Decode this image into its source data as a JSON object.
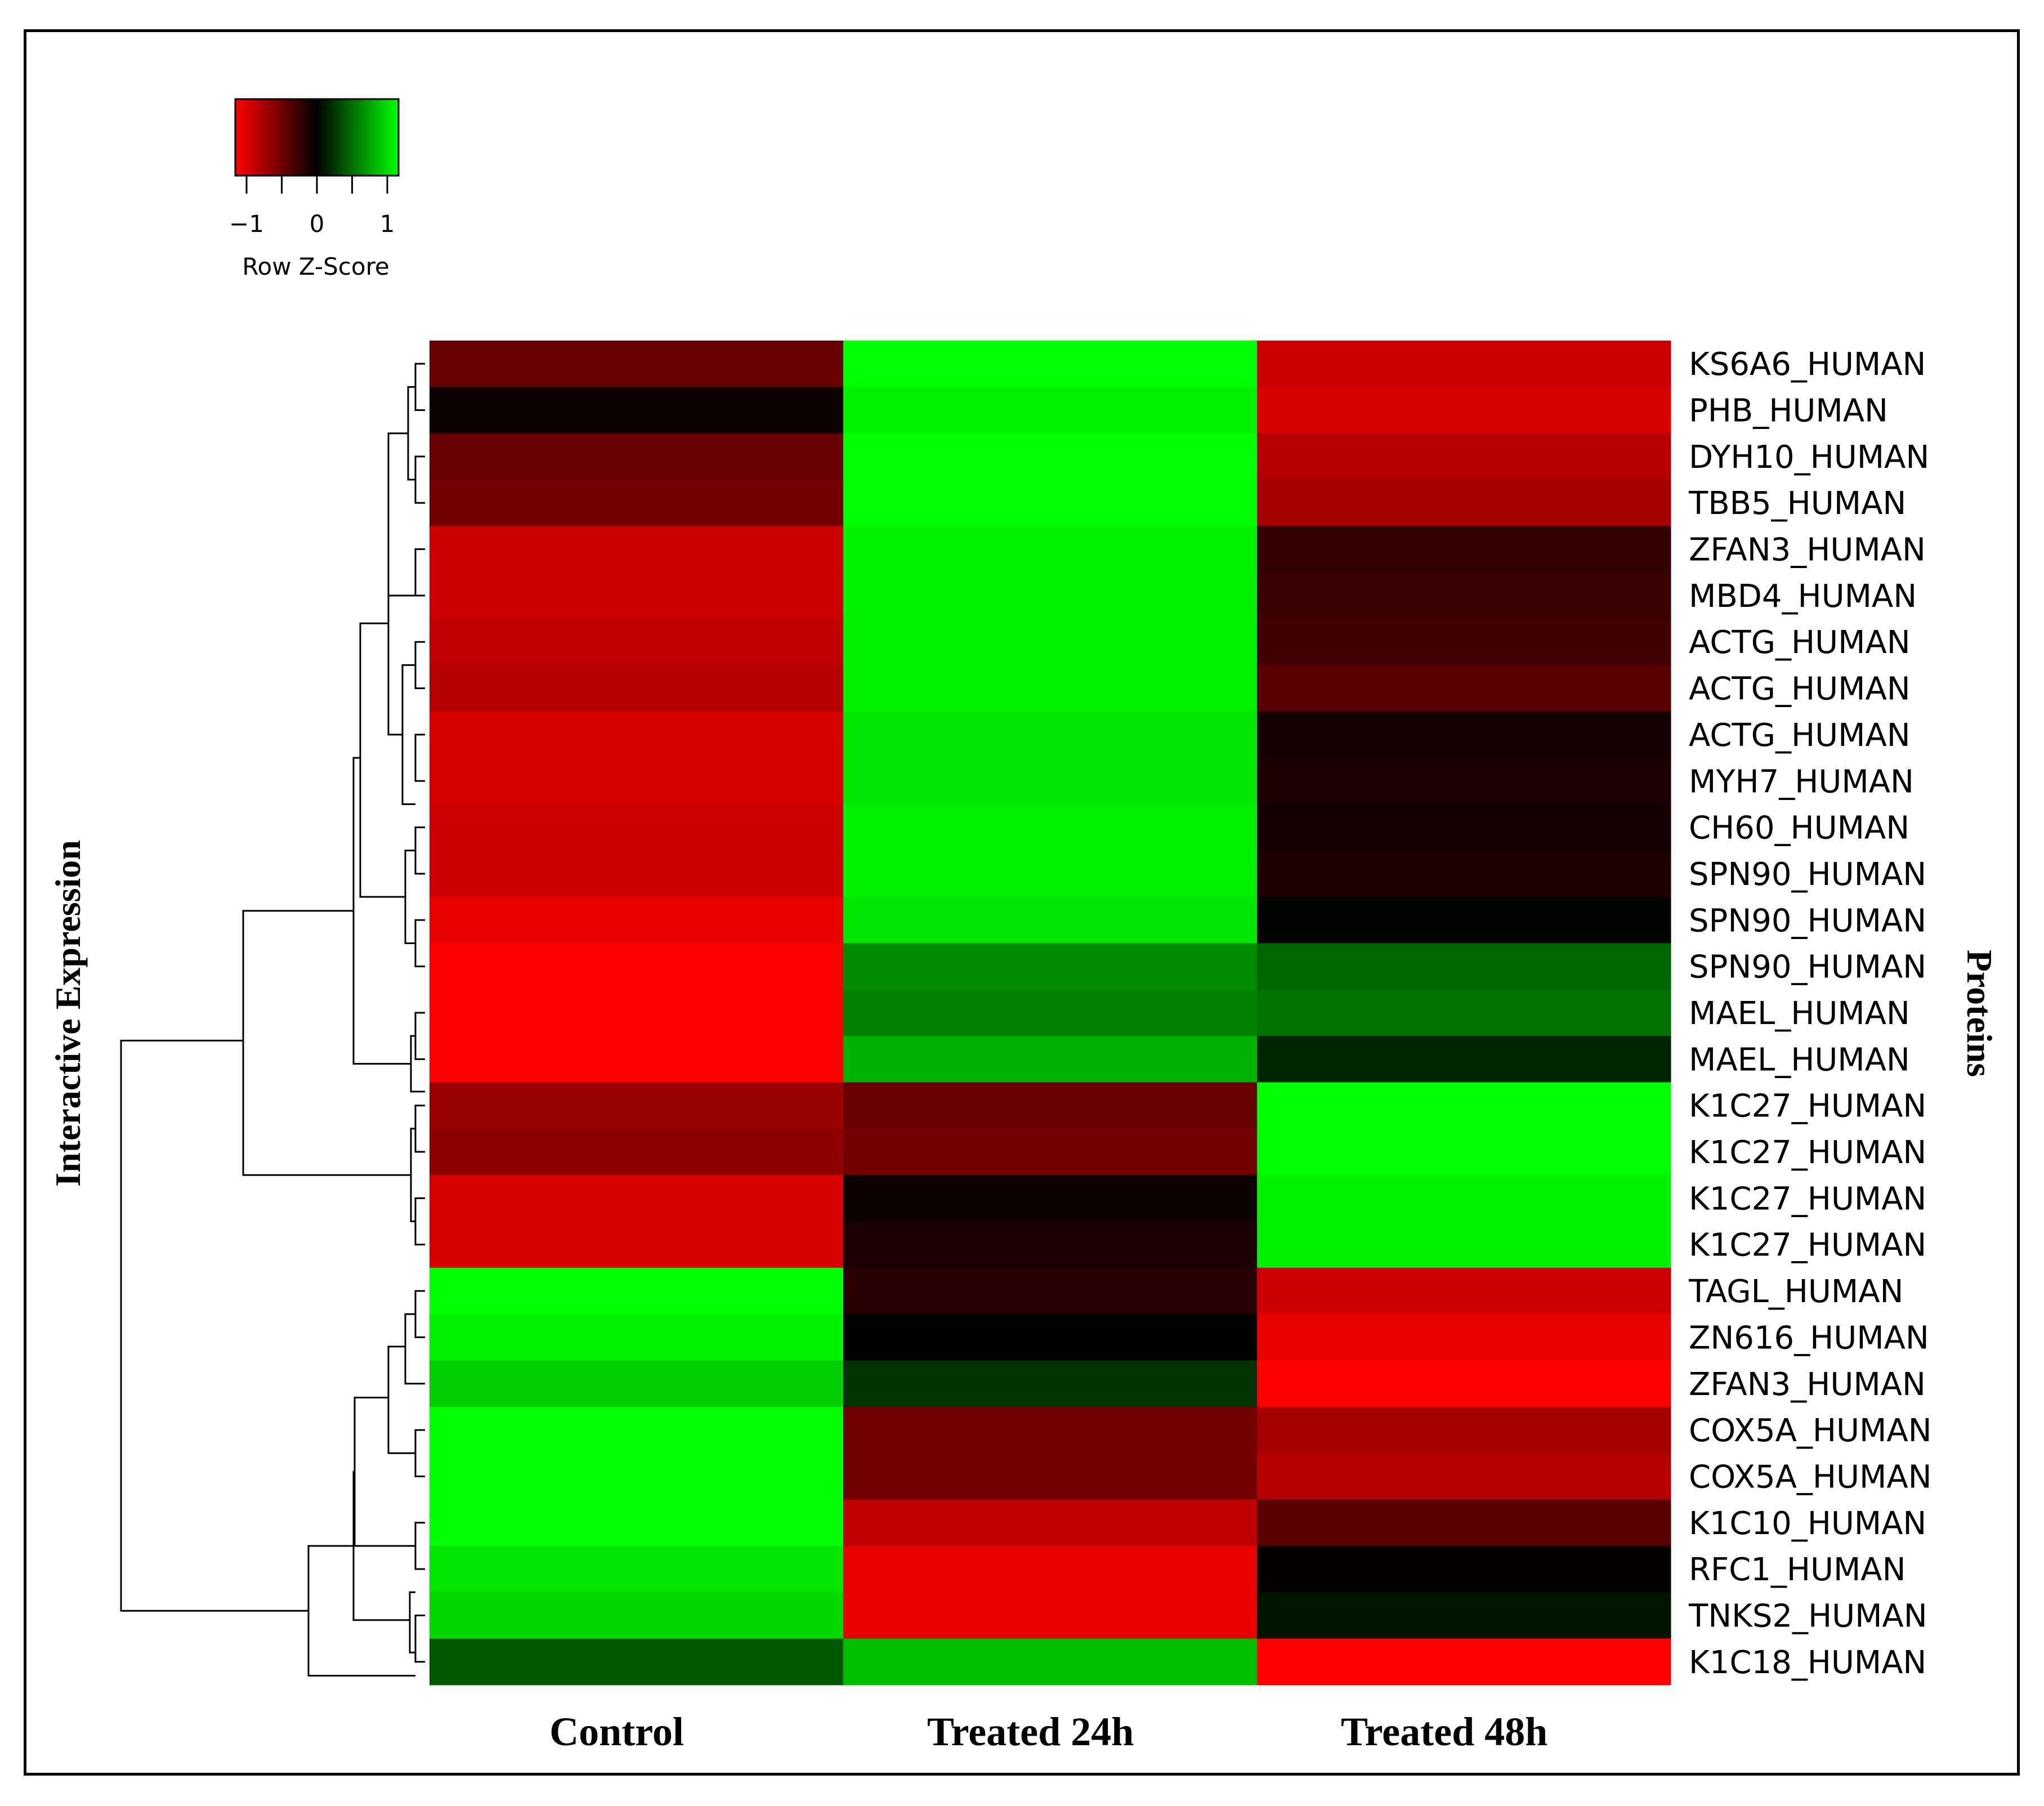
{
  "chart_data": {
    "type": "heatmap",
    "title": "",
    "y_axis_title": "Interactive Expression",
    "right_axis_title": "Proteins",
    "columns": [
      "Control",
      "Treated 24h",
      "Treated 48h"
    ],
    "color_scale": {
      "label": "Row Z-Score",
      "min": -1,
      "mid": 0,
      "max": 1,
      "tick_labels": [
        "−1",
        "0",
        "1"
      ],
      "low_color": "#ff0000",
      "mid_color": "#000000",
      "high_color": "#00ff00"
    },
    "proteins": [
      "KS6A6_HUMAN",
      "PHB_HUMAN",
      "DYH10_HUMAN",
      "TBB5_HUMAN",
      "ZFAN3_HUMAN",
      "MBD4_HUMAN",
      "ACTG_HUMAN",
      "ACTG_HUMAN",
      "ACTG_HUMAN",
      "MYH7_HUMAN",
      "CH60_HUMAN",
      "SPN90_HUMAN",
      "SPN90_HUMAN",
      "SPN90_HUMAN",
      "MAEL_HUMAN",
      "MAEL_HUMAN",
      "K1C27_HUMAN",
      "K1C27_HUMAN",
      "K1C27_HUMAN",
      "K1C27_HUMAN",
      "TAGL_HUMAN",
      "ZN616_HUMAN",
      "ZFAN3_HUMAN",
      "COX5A_HUMAN",
      "COX5A_HUMAN",
      "K1C10_HUMAN",
      "RFC1_HUMAN",
      "TNKS2_HUMAN",
      "K1C18_HUMAN"
    ],
    "z_scores": [
      [
        -0.4,
        1.0,
        -0.8
      ],
      [
        -0.05,
        0.95,
        -0.85
      ],
      [
        -0.4,
        1.0,
        -0.7
      ],
      [
        -0.45,
        1.0,
        -0.65
      ],
      [
        -0.8,
        0.95,
        -0.2
      ],
      [
        -0.8,
        0.95,
        -0.22
      ],
      [
        -0.75,
        0.95,
        -0.25
      ],
      [
        -0.7,
        0.95,
        -0.35
      ],
      [
        -0.85,
        0.9,
        -0.08
      ],
      [
        -0.85,
        0.9,
        -0.1
      ],
      [
        -0.8,
        0.95,
        -0.08
      ],
      [
        -0.8,
        0.95,
        -0.12
      ],
      [
        -0.9,
        0.9,
        0.02
      ],
      [
        -1.0,
        0.55,
        0.4
      ],
      [
        -1.0,
        0.5,
        0.45
      ],
      [
        -1.0,
        0.7,
        0.15
      ],
      [
        -0.6,
        -0.4,
        1.0
      ],
      [
        -0.55,
        -0.45,
        1.0
      ],
      [
        -0.85,
        -0.05,
        0.95
      ],
      [
        -0.85,
        -0.1,
        0.95
      ],
      [
        1.0,
        -0.15,
        -0.8
      ],
      [
        0.95,
        0.0,
        -0.9
      ],
      [
        0.8,
        0.2,
        -1.0
      ],
      [
        1.0,
        -0.45,
        -0.65
      ],
      [
        1.0,
        -0.45,
        -0.7
      ],
      [
        1.0,
        -0.75,
        -0.35
      ],
      [
        0.9,
        -0.9,
        -0.02
      ],
      [
        0.85,
        -0.9,
        0.08
      ],
      [
        0.35,
        0.75,
        -1.0
      ]
    ]
  }
}
